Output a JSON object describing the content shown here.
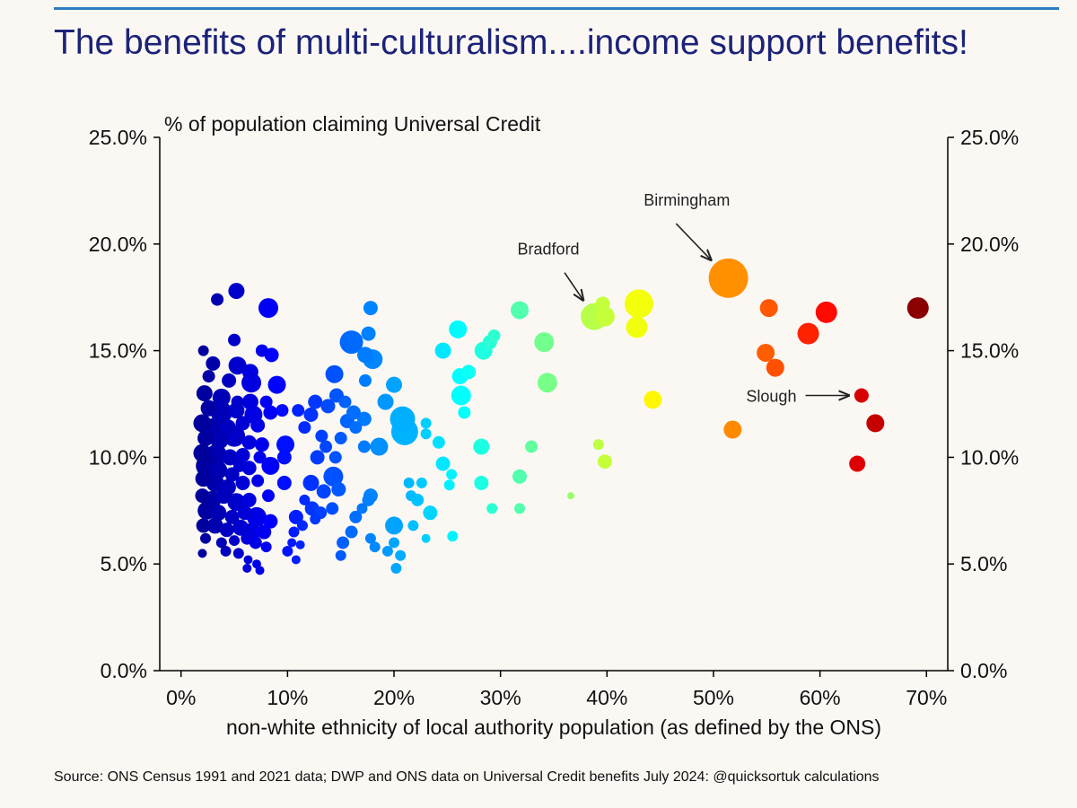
{
  "header": {
    "title": "The benefits of multi-culturalism....income support benefits!"
  },
  "footer": {
    "source": "Source: ONS Census 1991 and 2021 data; DWP and ONS data on Universal Credit benefits July 2024: @quicksortuk calculations"
  },
  "chart_data": {
    "type": "scatter",
    "title": "The benefits of multi-culturalism....income support benefits!",
    "ylabel": "% of population claiming Universal Credit",
    "xlabel": "non-white ethnicity of local authority population (as defined by the ONS)",
    "xlim": [
      -2,
      72
    ],
    "ylim": [
      0,
      25
    ],
    "x_ticks": [
      0,
      10,
      20,
      30,
      40,
      50,
      60,
      70
    ],
    "x_tick_labels": [
      "0%",
      "10%",
      "20%",
      "30%",
      "40%",
      "50%",
      "60%",
      "70%"
    ],
    "y_ticks": [
      0,
      5,
      10,
      15,
      20,
      25
    ],
    "y_tick_labels": [
      "0.0%",
      "5.0%",
      "10.0%",
      "15.0%",
      "20.0%",
      "25.0%"
    ],
    "grid": false,
    "colormap": "jet",
    "annotations": [
      {
        "text": "Birmingham",
        "x": 51.4,
        "y": 18.4,
        "text_x": 47.5,
        "text_y": 21.8
      },
      {
        "text": "Bradford",
        "x": 38.8,
        "y": 16.6,
        "text_x": 34.5,
        "text_y": 19.5
      },
      {
        "text": "Slough",
        "x": 63.9,
        "y": 12.9,
        "text_x": 55.1,
        "text_y": 12.9
      }
    ],
    "points": [
      {
        "x": 2.1,
        "y": 15.0,
        "s": 6
      },
      {
        "x": 3.4,
        "y": 17.4,
        "s": 7
      },
      {
        "x": 5.2,
        "y": 17.8,
        "s": 9
      },
      {
        "x": 8.2,
        "y": 17.0,
        "s": 11
      },
      {
        "x": 5.0,
        "y": 15.5,
        "s": 7
      },
      {
        "x": 7.6,
        "y": 15.0,
        "s": 7
      },
      {
        "x": 8.5,
        "y": 14.8,
        "s": 8
      },
      {
        "x": 3.0,
        "y": 14.4,
        "s": 8
      },
      {
        "x": 5.3,
        "y": 14.3,
        "s": 10
      },
      {
        "x": 6.5,
        "y": 14.0,
        "s": 9
      },
      {
        "x": 2.6,
        "y": 13.8,
        "s": 7
      },
      {
        "x": 4.5,
        "y": 13.6,
        "s": 8
      },
      {
        "x": 6.6,
        "y": 13.5,
        "s": 11
      },
      {
        "x": 9.0,
        "y": 13.4,
        "s": 10
      },
      {
        "x": 2.2,
        "y": 13.0,
        "s": 9
      },
      {
        "x": 3.8,
        "y": 12.8,
        "s": 10
      },
      {
        "x": 5.3,
        "y": 12.6,
        "s": 7
      },
      {
        "x": 6.5,
        "y": 12.6,
        "s": 9
      },
      {
        "x": 8.0,
        "y": 12.6,
        "s": 7
      },
      {
        "x": 2.6,
        "y": 12.3,
        "s": 9
      },
      {
        "x": 3.8,
        "y": 12.1,
        "s": 12
      },
      {
        "x": 5.2,
        "y": 12.2,
        "s": 9
      },
      {
        "x": 6.8,
        "y": 12.0,
        "s": 10
      },
      {
        "x": 8.4,
        "y": 12.1,
        "s": 8
      },
      {
        "x": 9.5,
        "y": 12.2,
        "s": 7
      },
      {
        "x": 2.0,
        "y": 11.6,
        "s": 10
      },
      {
        "x": 3.2,
        "y": 11.4,
        "s": 11
      },
      {
        "x": 4.4,
        "y": 11.4,
        "s": 9
      },
      {
        "x": 5.8,
        "y": 11.6,
        "s": 8
      },
      {
        "x": 7.2,
        "y": 11.5,
        "s": 8
      },
      {
        "x": 2.3,
        "y": 10.9,
        "s": 9
      },
      {
        "x": 3.6,
        "y": 10.8,
        "s": 10
      },
      {
        "x": 5.0,
        "y": 11.0,
        "s": 12
      },
      {
        "x": 6.4,
        "y": 10.7,
        "s": 8
      },
      {
        "x": 7.6,
        "y": 10.6,
        "s": 8
      },
      {
        "x": 9.8,
        "y": 10.6,
        "s": 10
      },
      {
        "x": 2.0,
        "y": 10.2,
        "s": 10
      },
      {
        "x": 3.3,
        "y": 10.1,
        "s": 12
      },
      {
        "x": 4.6,
        "y": 10.0,
        "s": 9
      },
      {
        "x": 5.8,
        "y": 10.1,
        "s": 8
      },
      {
        "x": 7.4,
        "y": 10.0,
        "s": 7
      },
      {
        "x": 9.7,
        "y": 10.0,
        "s": 8
      },
      {
        "x": 2.4,
        "y": 9.6,
        "s": 12
      },
      {
        "x": 3.5,
        "y": 9.4,
        "s": 10
      },
      {
        "x": 4.8,
        "y": 9.2,
        "s": 8
      },
      {
        "x": 5.5,
        "y": 9.6,
        "s": 7
      },
      {
        "x": 6.4,
        "y": 9.5,
        "s": 8
      },
      {
        "x": 8.4,
        "y": 9.6,
        "s": 10
      },
      {
        "x": 2.1,
        "y": 9.0,
        "s": 9
      },
      {
        "x": 3.2,
        "y": 8.8,
        "s": 10
      },
      {
        "x": 4.4,
        "y": 8.6,
        "s": 9
      },
      {
        "x": 5.8,
        "y": 8.8,
        "s": 8
      },
      {
        "x": 7.2,
        "y": 8.9,
        "s": 7
      },
      {
        "x": 9.7,
        "y": 8.8,
        "s": 8
      },
      {
        "x": 2.0,
        "y": 8.2,
        "s": 8
      },
      {
        "x": 2.9,
        "y": 8.0,
        "s": 10
      },
      {
        "x": 4.0,
        "y": 8.2,
        "s": 9
      },
      {
        "x": 5.2,
        "y": 7.9,
        "s": 10
      },
      {
        "x": 6.4,
        "y": 8.0,
        "s": 8
      },
      {
        "x": 8.2,
        "y": 8.2,
        "s": 7
      },
      {
        "x": 2.4,
        "y": 7.5,
        "s": 10
      },
      {
        "x": 3.5,
        "y": 7.4,
        "s": 9
      },
      {
        "x": 4.8,
        "y": 7.2,
        "s": 8
      },
      {
        "x": 6.0,
        "y": 7.4,
        "s": 8
      },
      {
        "x": 7.1,
        "y": 7.2,
        "s": 11
      },
      {
        "x": 8.4,
        "y": 7.0,
        "s": 8
      },
      {
        "x": 2.1,
        "y": 6.8,
        "s": 8
      },
      {
        "x": 3.2,
        "y": 6.8,
        "s": 9
      },
      {
        "x": 4.3,
        "y": 6.6,
        "s": 8
      },
      {
        "x": 5.6,
        "y": 6.7,
        "s": 9
      },
      {
        "x": 6.6,
        "y": 6.5,
        "s": 10
      },
      {
        "x": 7.8,
        "y": 6.5,
        "s": 8
      },
      {
        "x": 2.3,
        "y": 6.2,
        "s": 6
      },
      {
        "x": 3.8,
        "y": 6.0,
        "s": 6
      },
      {
        "x": 5.0,
        "y": 6.1,
        "s": 6
      },
      {
        "x": 6.2,
        "y": 6.2,
        "s": 7
      },
      {
        "x": 7.0,
        "y": 6.0,
        "s": 7
      },
      {
        "x": 8.0,
        "y": 5.8,
        "s": 6
      },
      {
        "x": 2.0,
        "y": 5.5,
        "s": 5
      },
      {
        "x": 4.2,
        "y": 5.6,
        "s": 6
      },
      {
        "x": 5.4,
        "y": 5.5,
        "s": 6
      },
      {
        "x": 6.3,
        "y": 5.2,
        "s": 5
      },
      {
        "x": 7.1,
        "y": 5.0,
        "s": 5
      },
      {
        "x": 6.2,
        "y": 4.8,
        "s": 5
      },
      {
        "x": 7.4,
        "y": 4.7,
        "s": 5
      },
      {
        "x": 10.8,
        "y": 5.2,
        "s": 5
      },
      {
        "x": 10.0,
        "y": 5.6,
        "s": 6
      },
      {
        "x": 10.4,
        "y": 6.0,
        "s": 5
      },
      {
        "x": 11.2,
        "y": 5.9,
        "s": 5
      },
      {
        "x": 10.6,
        "y": 6.5,
        "s": 6
      },
      {
        "x": 11.4,
        "y": 6.8,
        "s": 6
      },
      {
        "x": 10.8,
        "y": 7.2,
        "s": 8
      },
      {
        "x": 12.3,
        "y": 7.6,
        "s": 8
      },
      {
        "x": 11.6,
        "y": 8.0,
        "s": 6
      },
      {
        "x": 12.6,
        "y": 7.1,
        "s": 6
      },
      {
        "x": 13.1,
        "y": 7.4,
        "s": 7
      },
      {
        "x": 12.2,
        "y": 8.8,
        "s": 9
      },
      {
        "x": 13.4,
        "y": 8.4,
        "s": 8
      },
      {
        "x": 14.3,
        "y": 9.1,
        "s": 11
      },
      {
        "x": 12.8,
        "y": 10.0,
        "s": 8
      },
      {
        "x": 13.6,
        "y": 10.5,
        "s": 7
      },
      {
        "x": 14.5,
        "y": 10.0,
        "s": 7
      },
      {
        "x": 15.0,
        "y": 10.9,
        "s": 7
      },
      {
        "x": 13.2,
        "y": 11.0,
        "s": 7
      },
      {
        "x": 11.6,
        "y": 11.4,
        "s": 7
      },
      {
        "x": 12.2,
        "y": 12.0,
        "s": 8
      },
      {
        "x": 12.6,
        "y": 12.6,
        "s": 8
      },
      {
        "x": 11.0,
        "y": 12.2,
        "s": 7
      },
      {
        "x": 13.8,
        "y": 12.4,
        "s": 8
      },
      {
        "x": 14.6,
        "y": 12.9,
        "s": 8
      },
      {
        "x": 15.4,
        "y": 12.6,
        "s": 7
      },
      {
        "x": 14.4,
        "y": 13.9,
        "s": 10
      },
      {
        "x": 15.6,
        "y": 11.7,
        "s": 8
      },
      {
        "x": 16.0,
        "y": 15.4,
        "s": 13
      },
      {
        "x": 17.3,
        "y": 14.8,
        "s": 9
      },
      {
        "x": 17.6,
        "y": 15.8,
        "s": 8
      },
      {
        "x": 17.8,
        "y": 17.0,
        "s": 8
      },
      {
        "x": 17.3,
        "y": 13.6,
        "s": 7
      },
      {
        "x": 18.0,
        "y": 14.6,
        "s": 11
      },
      {
        "x": 17.2,
        "y": 11.8,
        "s": 8
      },
      {
        "x": 16.2,
        "y": 12.1,
        "s": 8
      },
      {
        "x": 16.4,
        "y": 11.4,
        "s": 7
      },
      {
        "x": 14.8,
        "y": 8.5,
        "s": 8
      },
      {
        "x": 14.2,
        "y": 7.6,
        "s": 7
      },
      {
        "x": 15.2,
        "y": 6.0,
        "s": 7
      },
      {
        "x": 16.0,
        "y": 6.5,
        "s": 7
      },
      {
        "x": 15.0,
        "y": 5.4,
        "s": 6
      },
      {
        "x": 16.4,
        "y": 7.2,
        "s": 7
      },
      {
        "x": 17.6,
        "y": 8.0,
        "s": 7
      },
      {
        "x": 17.2,
        "y": 10.5,
        "s": 7
      },
      {
        "x": 18.6,
        "y": 10.5,
        "s": 10
      },
      {
        "x": 19.2,
        "y": 12.6,
        "s": 9
      },
      {
        "x": 20.0,
        "y": 13.4,
        "s": 9
      },
      {
        "x": 17.8,
        "y": 6.2,
        "s": 6
      },
      {
        "x": 18.2,
        "y": 5.8,
        "s": 6
      },
      {
        "x": 17.0,
        "y": 7.6,
        "s": 6
      },
      {
        "x": 17.8,
        "y": 8.2,
        "s": 8
      },
      {
        "x": 20.8,
        "y": 11.8,
        "s": 14
      },
      {
        "x": 21.0,
        "y": 11.2,
        "s": 15
      },
      {
        "x": 20.0,
        "y": 6.8,
        "s": 10
      },
      {
        "x": 20.2,
        "y": 4.8,
        "s": 6
      },
      {
        "x": 19.4,
        "y": 5.6,
        "s": 6
      },
      {
        "x": 20.6,
        "y": 5.4,
        "s": 6
      },
      {
        "x": 20.0,
        "y": 6.0,
        "s": 6
      },
      {
        "x": 21.4,
        "y": 8.8,
        "s": 6
      },
      {
        "x": 21.6,
        "y": 8.2,
        "s": 6
      },
      {
        "x": 22.2,
        "y": 8.0,
        "s": 7
      },
      {
        "x": 22.6,
        "y": 8.8,
        "s": 6
      },
      {
        "x": 21.8,
        "y": 6.8,
        "s": 6
      },
      {
        "x": 23.0,
        "y": 6.2,
        "s": 5
      },
      {
        "x": 23.4,
        "y": 7.4,
        "s": 8
      },
      {
        "x": 23.0,
        "y": 11.6,
        "s": 6
      },
      {
        "x": 23.0,
        "y": 11.1,
        "s": 6
      },
      {
        "x": 24.2,
        "y": 10.7,
        "s": 7
      },
      {
        "x": 24.6,
        "y": 9.7,
        "s": 8
      },
      {
        "x": 24.6,
        "y": 15.0,
        "s": 9
      },
      {
        "x": 25.4,
        "y": 9.2,
        "s": 6
      },
      {
        "x": 25.2,
        "y": 8.7,
        "s": 6
      },
      {
        "x": 25.5,
        "y": 6.3,
        "s": 6
      },
      {
        "x": 26.0,
        "y": 16.0,
        "s": 10
      },
      {
        "x": 26.2,
        "y": 13.8,
        "s": 9
      },
      {
        "x": 27.0,
        "y": 14.0,
        "s": 8
      },
      {
        "x": 26.3,
        "y": 12.9,
        "s": 11
      },
      {
        "x": 26.6,
        "y": 12.1,
        "s": 7
      },
      {
        "x": 28.4,
        "y": 15.0,
        "s": 10
      },
      {
        "x": 29.0,
        "y": 15.4,
        "s": 8
      },
      {
        "x": 29.4,
        "y": 15.7,
        "s": 7
      },
      {
        "x": 28.2,
        "y": 10.5,
        "s": 9
      },
      {
        "x": 28.2,
        "y": 8.8,
        "s": 8
      },
      {
        "x": 29.2,
        "y": 7.6,
        "s": 6
      },
      {
        "x": 31.8,
        "y": 16.9,
        "s": 10
      },
      {
        "x": 31.8,
        "y": 9.1,
        "s": 8
      },
      {
        "x": 31.8,
        "y": 7.6,
        "s": 6
      },
      {
        "x": 32.9,
        "y": 10.5,
        "s": 7
      },
      {
        "x": 34.1,
        "y": 15.4,
        "s": 11
      },
      {
        "x": 34.4,
        "y": 13.5,
        "s": 11
      },
      {
        "x": 36.6,
        "y": 8.2,
        "s": 4
      },
      {
        "x": 38.8,
        "y": 16.6,
        "s": 15
      },
      {
        "x": 39.8,
        "y": 16.6,
        "s": 11
      },
      {
        "x": 39.6,
        "y": 17.2,
        "s": 8
      },
      {
        "x": 39.2,
        "y": 10.6,
        "s": 6
      },
      {
        "x": 39.8,
        "y": 9.8,
        "s": 8
      },
      {
        "x": 43.0,
        "y": 17.2,
        "s": 16
      },
      {
        "x": 42.8,
        "y": 16.1,
        "s": 12
      },
      {
        "x": 44.3,
        "y": 12.7,
        "s": 10
      },
      {
        "x": 51.4,
        "y": 18.4,
        "s": 22
      },
      {
        "x": 55.2,
        "y": 17.0,
        "s": 10
      },
      {
        "x": 51.8,
        "y": 11.3,
        "s": 10
      },
      {
        "x": 54.9,
        "y": 14.9,
        "s": 10
      },
      {
        "x": 55.8,
        "y": 14.2,
        "s": 10
      },
      {
        "x": 58.9,
        "y": 15.8,
        "s": 12
      },
      {
        "x": 60.6,
        "y": 16.8,
        "s": 12
      },
      {
        "x": 63.9,
        "y": 12.9,
        "s": 8
      },
      {
        "x": 63.5,
        "y": 9.7,
        "s": 9
      },
      {
        "x": 65.2,
        "y": 11.6,
        "s": 10
      },
      {
        "x": 69.2,
        "y": 17.0,
        "s": 12
      }
    ]
  }
}
